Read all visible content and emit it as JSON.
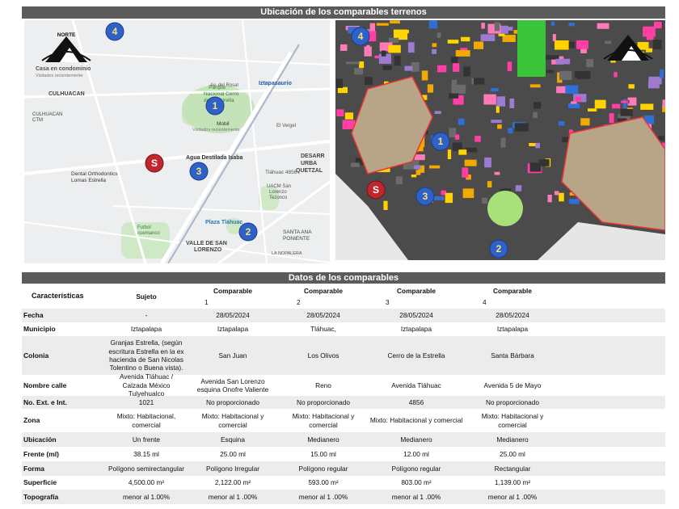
{
  "header": {
    "title": "Ubicación de los comparables terrenos"
  },
  "maps": {
    "left": {
      "north": "NORTE",
      "markers": [
        "4",
        "1",
        "3",
        "S",
        "2"
      ],
      "labels": [
        "Casa en condominio",
        "Visitados recientemente",
        "CULHUACAN",
        "CULHUACAN",
        "CTM",
        "Parque",
        "Nacional Cerro",
        "de la Estrella",
        "Av. del Rosal",
        "Iztapasaurio",
        "Mobil",
        "Visitados recientemente",
        "El Vergel",
        "Agua Destilada Isaba",
        "Tláhuac 4856",
        "DESARR",
        "URBA",
        "QUETZAL",
        "Dental Orthodontics",
        "Lomas Estrella",
        "UACM San",
        "Lorenzo",
        "Tezonco",
        "Plaza Tláhuac",
        "SANTA ANA",
        "PONIENTE",
        "Futbol",
        "cuemanco",
        "VALLE DE SAN",
        "LORENZO",
        "LA NOPALERA"
      ]
    },
    "right": {
      "markers": [
        "4",
        "1",
        "S",
        "3",
        "2"
      ]
    }
  },
  "table": {
    "title": "Datos de los comparables",
    "head": {
      "label": "Características",
      "subject": "Sujeto",
      "comparables": [
        {
          "title": "Comparable",
          "number": "1"
        },
        {
          "title": "Comparable",
          "number": "2"
        },
        {
          "title": "Comparable",
          "number": "3"
        },
        {
          "title": "Comparable",
          "number": "4"
        }
      ]
    },
    "rows": [
      [
        "Fecha",
        "-",
        "28/05/2024",
        "28/05/2024",
        "28/05/2024",
        "28/05/2024"
      ],
      [
        "Municipio",
        "Iztapalapa",
        "Iztapalapa",
        "Tláhuac,",
        "Iztapalapa",
        "Iztapalapa"
      ],
      [
        "Colonia",
        "Granjas Estrella, (según escritura Estrella en la ex hacienda de San Nicolas Tolentino o Buena vista).",
        "San Juan",
        "Los Olivos",
        "Cerro de la Estrella",
        "Santa Bárbara"
      ],
      [
        "Nombre calle",
        "Avenida Tláhuac / Calzada México Tulyehualco",
        "Avenida San Lorenzo esquina Onofre Valiente",
        "Reno",
        "Avenida Tláhuac",
        "Avenida 5 de Mayo"
      ],
      [
        "No. Ext. e Int.",
        "1021",
        "No proporcionado",
        "No proporcionado",
        "4856",
        "No proporcionado"
      ],
      [
        "Zona",
        "Mixto: Habitacional, comercial",
        "Mixto: Habitacional y comercial",
        "Mixto: Habitacional y comercial",
        "Mixto: Habitacional y comercial",
        "Mixto: Habitacional y comercial"
      ],
      [
        "Ubicación",
        "Un frente",
        "Esquina",
        "Medianero",
        "Medianero",
        "Medianero"
      ],
      [
        "Frente (ml)",
        "38.15 ml",
        "25.00 ml",
        "15.00 ml",
        "12.00 ml",
        "25.00 ml"
      ],
      [
        "Forma",
        "Polígono semirectangular",
        "Polígono Irregular",
        "Polígono regular",
        "Polígono regular",
        "Rectangular"
      ],
      [
        "Superficie",
        "4,500.00 m²",
        "2,122.00 m²",
        "593.00 m²",
        "803.00 m²",
        "1,139.00 m²"
      ],
      [
        "Topografía",
        "menor al 1.00%",
        "menor al 1 .00%",
        "menor al 1 .00%",
        "menor al 1 .00%",
        "menor al 1 .00%"
      ]
    ]
  }
}
